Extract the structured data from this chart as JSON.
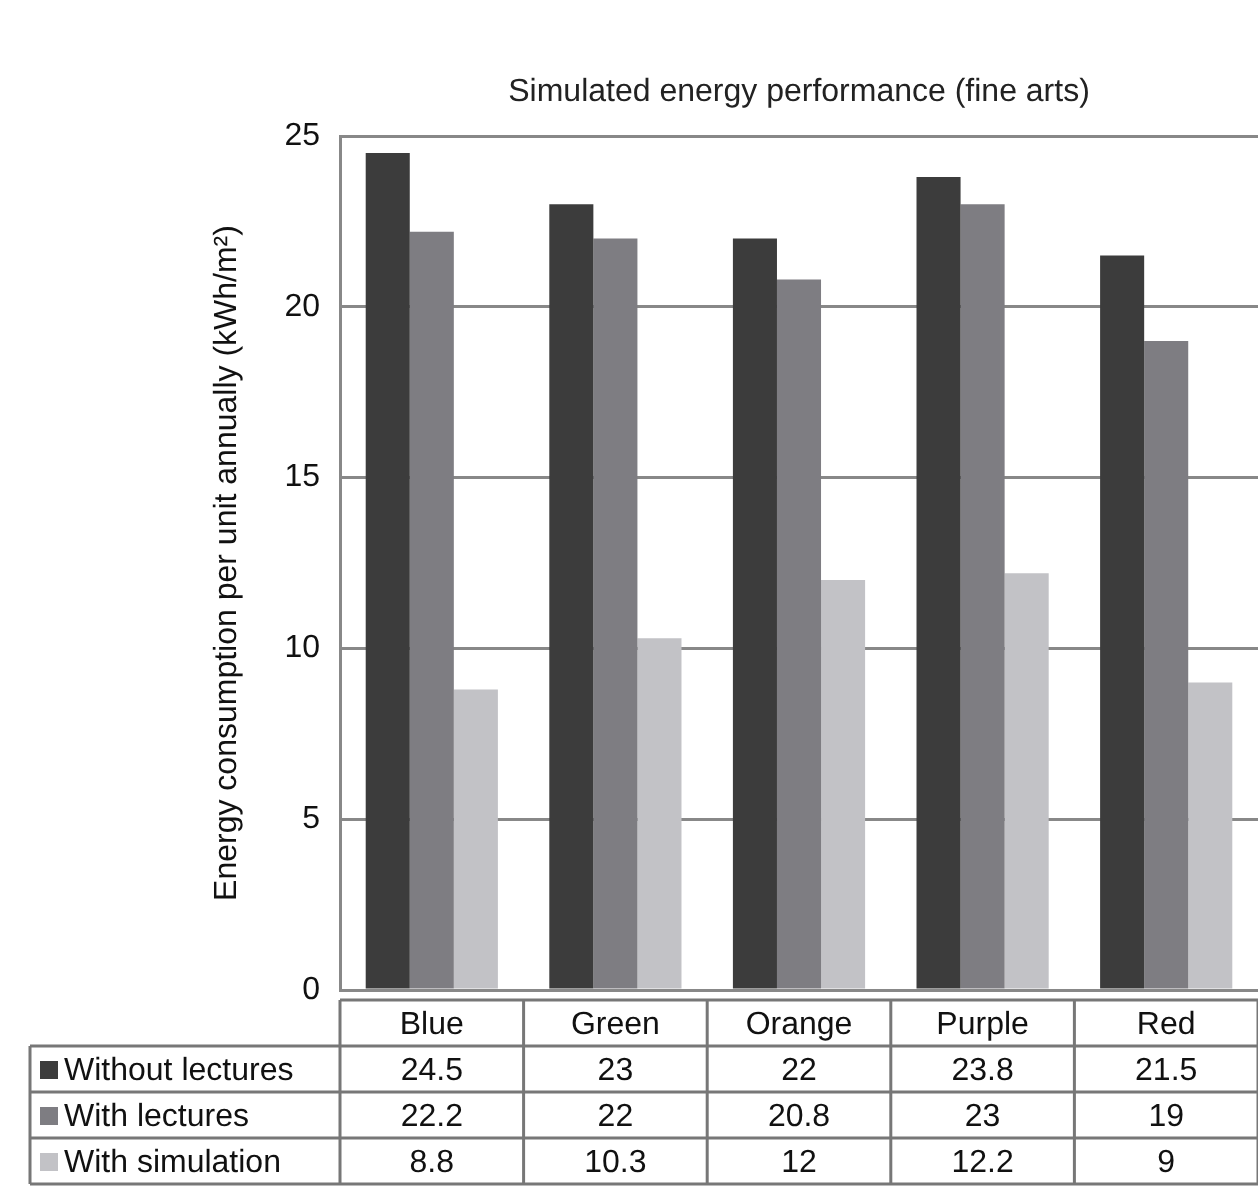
{
  "chart_data": {
    "type": "bar",
    "title": "Simulated energy performance (fine arts)",
    "ylabel": "Energy consumption per unit annually (kWh/m²)",
    "categories": [
      "Blue",
      "Green",
      "Orange",
      "Purple",
      "Red"
    ],
    "series": [
      {
        "name": "Without lectures",
        "color": "#3c3c3c",
        "values": [
          24.5,
          23,
          22,
          23.8,
          21.5
        ]
      },
      {
        "name": "With lectures",
        "color": "#7e7d82",
        "values": [
          22.2,
          22,
          20.8,
          23,
          19
        ]
      },
      {
        "name": "With simulation",
        "color": "#c2c2c6",
        "values": [
          8.8,
          10.3,
          12,
          12.2,
          9
        ]
      }
    ],
    "ylim": [
      0,
      25
    ],
    "yticks": [
      0,
      5,
      10,
      15,
      20,
      25
    ],
    "grid": "y",
    "legend": "bottom",
    "data_labels": true
  }
}
